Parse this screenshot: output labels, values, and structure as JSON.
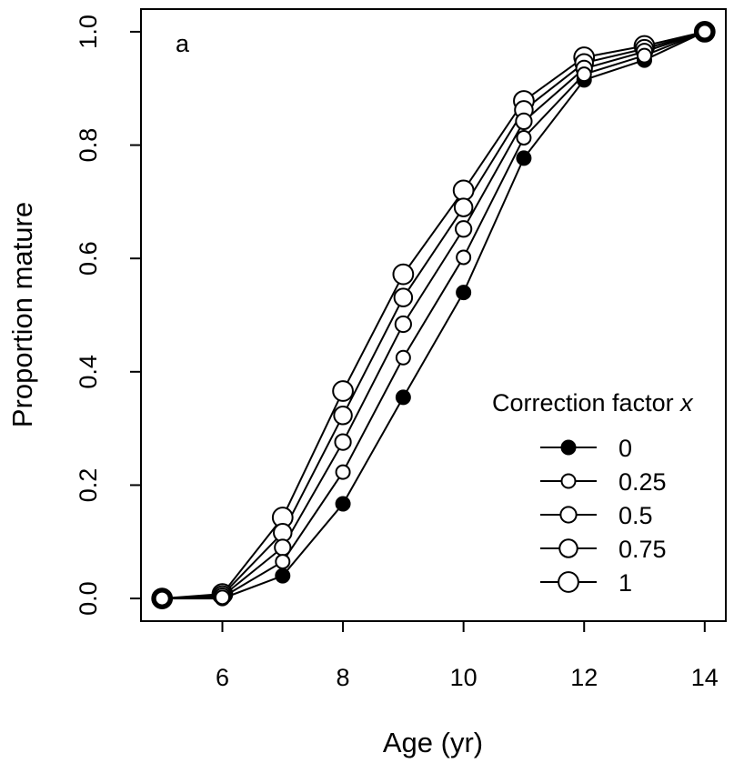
{
  "chart_data": {
    "type": "line",
    "panel_label": "a",
    "xlabel": "Age (yr)",
    "ylabel": "Proportion mature",
    "xlim": [
      4.65,
      14.35
    ],
    "ylim": [
      -0.04,
      1.04
    ],
    "x_ticks": [
      6,
      8,
      10,
      12,
      14
    ],
    "y_ticks": [
      0.0,
      0.2,
      0.4,
      0.6,
      0.8,
      1.0
    ],
    "y_tick_labels": [
      "0.0",
      "0.2",
      "0.4",
      "0.6",
      "0.8",
      "1.0"
    ],
    "grid": false,
    "legend": {
      "title": "Correction factor ",
      "title_variable": "x",
      "placement": "bottom-right"
    },
    "x": [
      5,
      6,
      7,
      8,
      9,
      10,
      11,
      12,
      13,
      14
    ],
    "series": [
      {
        "name": "0",
        "filled": true,
        "marker_scale": 1.0,
        "values": [
          0.0,
          0.0,
          0.04,
          0.167,
          0.355,
          0.54,
          0.777,
          0.915,
          0.95,
          1.0
        ]
      },
      {
        "name": "0.25",
        "filled": false,
        "marker_scale": 1.0,
        "values": [
          0.0,
          0.002,
          0.065,
          0.223,
          0.425,
          0.602,
          0.813,
          0.925,
          0.958,
          1.0
        ]
      },
      {
        "name": "0.5",
        "filled": false,
        "marker_scale": 1.15,
        "values": [
          0.0,
          0.004,
          0.09,
          0.276,
          0.484,
          0.652,
          0.842,
          0.935,
          0.965,
          1.0
        ]
      },
      {
        "name": "0.75",
        "filled": false,
        "marker_scale": 1.3,
        "values": [
          0.0,
          0.006,
          0.116,
          0.323,
          0.531,
          0.69,
          0.862,
          0.945,
          0.97,
          1.0
        ]
      },
      {
        "name": "1",
        "filled": false,
        "marker_scale": 1.45,
        "values": [
          0.0,
          0.008,
          0.143,
          0.366,
          0.572,
          0.72,
          0.878,
          0.955,
          0.975,
          1.0
        ]
      }
    ]
  }
}
